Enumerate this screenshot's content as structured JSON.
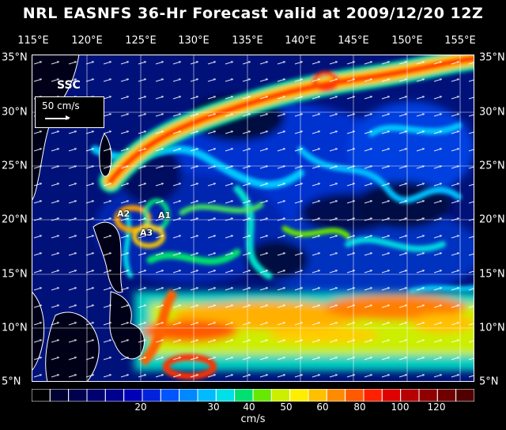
{
  "title": "NRL EASNFS  36-Hr Forecast valid at 2009/12/20 12Z",
  "map": {
    "lon_labels": [
      "115°E",
      "120°E",
      "125°E",
      "130°E",
      "135°E",
      "140°E",
      "145°E",
      "150°E",
      "155°E"
    ],
    "lat_labels": [
      "35°N",
      "30°N",
      "25°N",
      "20°N",
      "15°N",
      "10°N",
      "5°N"
    ],
    "field_label": "SSC",
    "scale_label": "50 cm/s",
    "markers": [
      {
        "label": "A1"
      },
      {
        "label": "A2"
      },
      {
        "label": "A3"
      }
    ],
    "grid": true
  },
  "colorbar": {
    "units": "cm/s",
    "tick_labels": [
      "20",
      "30",
      "40",
      "50",
      "60",
      "80",
      "100",
      "120"
    ],
    "colors": [
      "#000000",
      "#000033",
      "#00004f",
      "#000070",
      "#000090",
      "#0000b8",
      "#0022dd",
      "#0055ff",
      "#0088ff",
      "#00bbff",
      "#00e0e8",
      "#00e070",
      "#66e800",
      "#ccee00",
      "#ffee00",
      "#ffc000",
      "#ff8c00",
      "#ff5a00",
      "#ff2000",
      "#e00000",
      "#b80000",
      "#900000",
      "#700000",
      "#500000"
    ]
  }
}
